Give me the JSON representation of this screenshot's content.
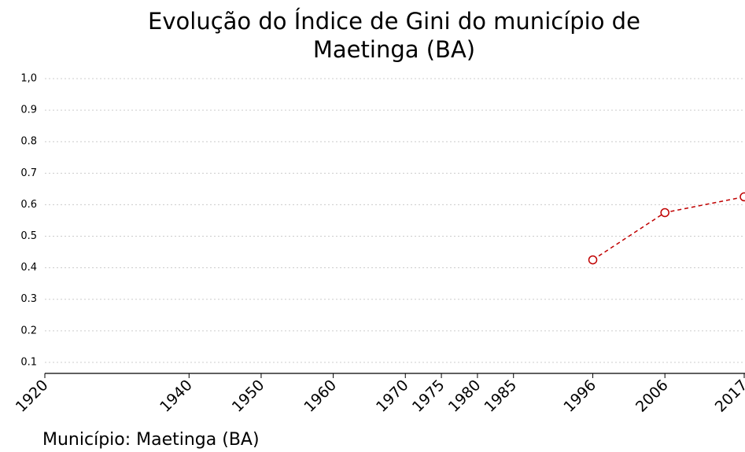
{
  "chart_data": {
    "type": "line",
    "title": [
      "Evolução do Índice de Gini do município de",
      "Maetinga (BA)"
    ],
    "footer": "Município: Maetinga (BA)",
    "series": [
      {
        "name": "Maetinga (BA)",
        "color": "#c00000",
        "x": [
          1996,
          2006,
          2017
        ],
        "values": [
          0.425,
          0.575,
          0.625
        ]
      }
    ],
    "xlim": [
      1920,
      2017
    ],
    "xticks": [
      1920,
      1940,
      1950,
      1960,
      1970,
      1975,
      1980,
      1985,
      1996,
      2006,
      2017
    ],
    "ylim": [
      0.065,
      1.0
    ],
    "yticks": [
      0.1,
      0.2,
      0.3,
      0.4,
      0.5,
      0.6,
      0.7,
      0.8,
      0.9,
      {
        "value": 1.0,
        "label": "1,0"
      }
    ],
    "grid": true
  }
}
